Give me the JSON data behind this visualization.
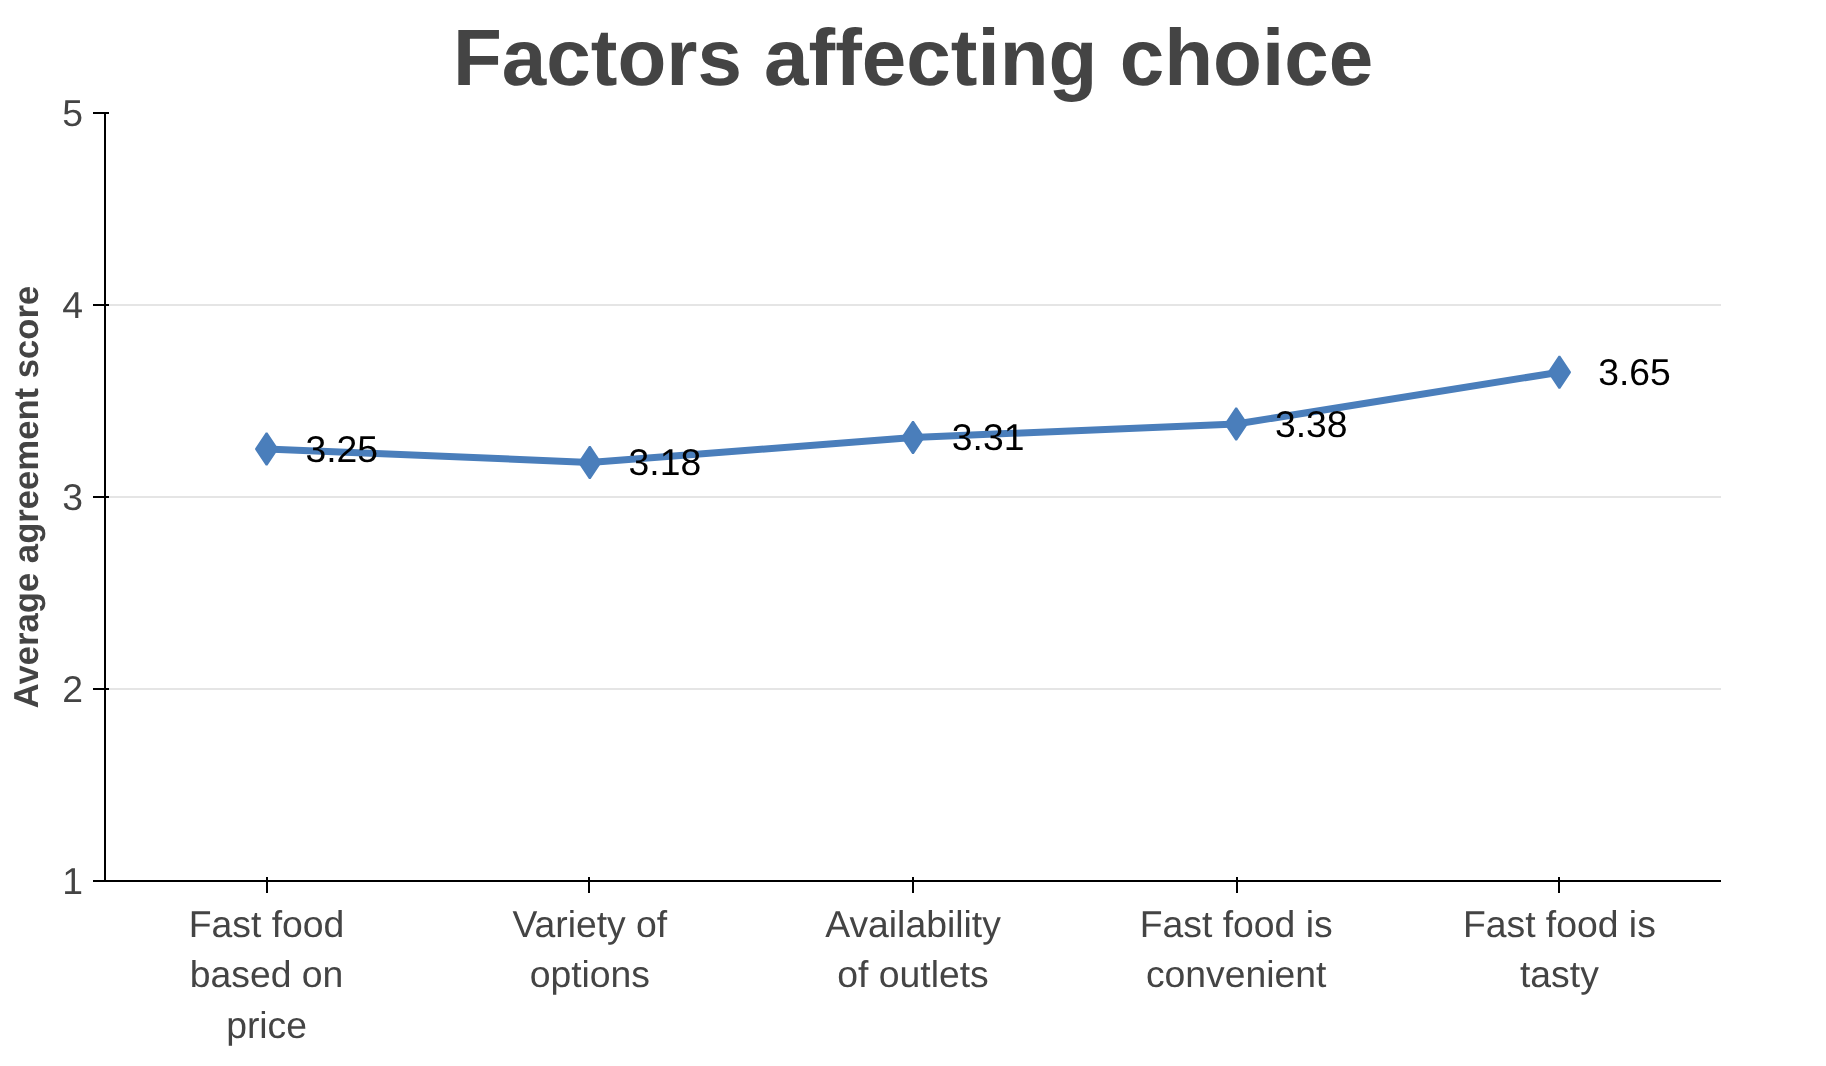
{
  "chart_data": {
    "type": "line",
    "title": "Factors affecting choice",
    "ylabel": "Average agreement score",
    "categories": [
      "Fast food based on price",
      "Variety of options",
      "Availability of outlets",
      "Fast food is convenient",
      "Fast food is tasty"
    ],
    "series": [
      {
        "color": "#4a7ebb",
        "values": [
          3.25,
          3.18,
          3.31,
          3.38,
          3.65
        ]
      }
    ],
    "ylim": [
      1,
      5
    ],
    "yticks": [
      1,
      2,
      3,
      4,
      5
    ],
    "grid": "y",
    "marker": "diamond",
    "line_style": "solid",
    "data_labels": true
  }
}
